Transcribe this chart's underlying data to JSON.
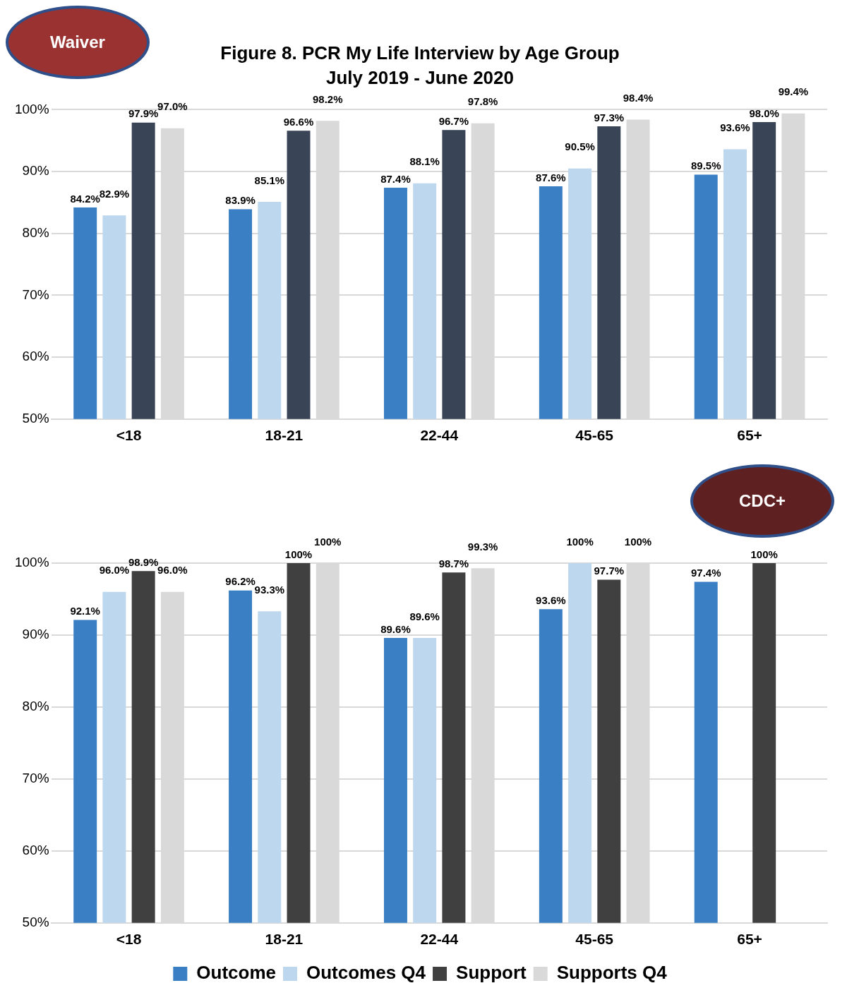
{
  "chart_data": [
    {
      "type": "bar",
      "title": "Figure 8. PCR My Life Interview by Age Group",
      "subtitle": "July 2019 - June 2020",
      "annotations": [
        "Waiver"
      ],
      "categories": [
        "<18",
        "18-21",
        "22-44",
        "45-65",
        "65+"
      ],
      "series": [
        {
          "color": "#3a7fc4",
          "values": [
            84.2,
            83.9,
            87.4,
            87.6,
            89.5
          ],
          "value_labels": [
            "84.2%",
            "83.9%",
            "87.4%",
            "87.6%",
            "89.5%"
          ]
        },
        {
          "color": "#bdd7ee",
          "values": [
            82.9,
            85.1,
            88.1,
            90.5,
            93.6
          ],
          "value_labels": [
            "82.9%",
            "85.1%",
            "88.1%",
            "90.5%",
            "93.6%"
          ]
        },
        {
          "color": "#3a4457",
          "values": [
            97.9,
            96.6,
            96.7,
            97.3,
            98.0
          ],
          "value_labels": [
            "97.9%",
            "96.6%",
            "96.7%",
            "97.3%",
            "98.0%"
          ]
        },
        {
          "color": "#d9d9d9",
          "values": [
            97.0,
            98.2,
            97.8,
            98.4,
            99.4
          ],
          "value_labels": [
            "97.0%",
            "98.2%",
            "97.8%",
            "98.4%",
            "99.4%"
          ]
        }
      ],
      "ylim": [
        50,
        100
      ],
      "yticks": [
        {
          "value": 50,
          "label": "50%"
        },
        {
          "value": 60,
          "label": "60%"
        },
        {
          "value": 70,
          "label": "70%"
        },
        {
          "value": 80,
          "label": "80%"
        },
        {
          "value": 90,
          "label": "90%"
        },
        {
          "value": 100,
          "label": "100%"
        }
      ],
      "grid": "y",
      "legend": false
    },
    {
      "type": "bar",
      "annotations": [
        "CDC+"
      ],
      "categories": [
        "<18",
        "18-21",
        "22-44",
        "45-65",
        "65+"
      ],
      "series": [
        {
          "name": "Outcome",
          "color": "#3a7fc4",
          "values": [
            92.1,
            96.2,
            89.6,
            93.6,
            97.4
          ],
          "value_labels": [
            "92.1%",
            "96.2%",
            "89.6%",
            "93.6%",
            "97.4%"
          ]
        },
        {
          "name": "Outcomes Q4",
          "color": "#bdd7ee",
          "values": [
            96.0,
            93.3,
            89.6,
            100,
            null
          ],
          "value_labels": [
            "96.0%",
            "93.3%",
            "89.6%",
            "100%",
            null
          ]
        },
        {
          "name": "Support",
          "color": "#404040",
          "values": [
            98.9,
            100,
            98.7,
            97.7,
            100
          ],
          "value_labels": [
            "98.9%",
            "100%",
            "98.7%",
            "97.7%",
            "100%"
          ]
        },
        {
          "name": "Supports Q4",
          "color": "#d9d9d9",
          "values": [
            96.0,
            100,
            99.3,
            100,
            null
          ],
          "value_labels": [
            "96.0%",
            "100%",
            "99.3%",
            "100%",
            null
          ]
        }
      ],
      "ylim": [
        50,
        100
      ],
      "yticks": [
        {
          "value": 50,
          "label": "50%"
        },
        {
          "value": 60,
          "label": "60%"
        },
        {
          "value": 70,
          "label": "70%"
        },
        {
          "value": 80,
          "label": "80%"
        },
        {
          "value": 90,
          "label": "90%"
        },
        {
          "value": 100,
          "label": "100%"
        }
      ],
      "grid": "y",
      "legend": "bottom"
    }
  ]
}
